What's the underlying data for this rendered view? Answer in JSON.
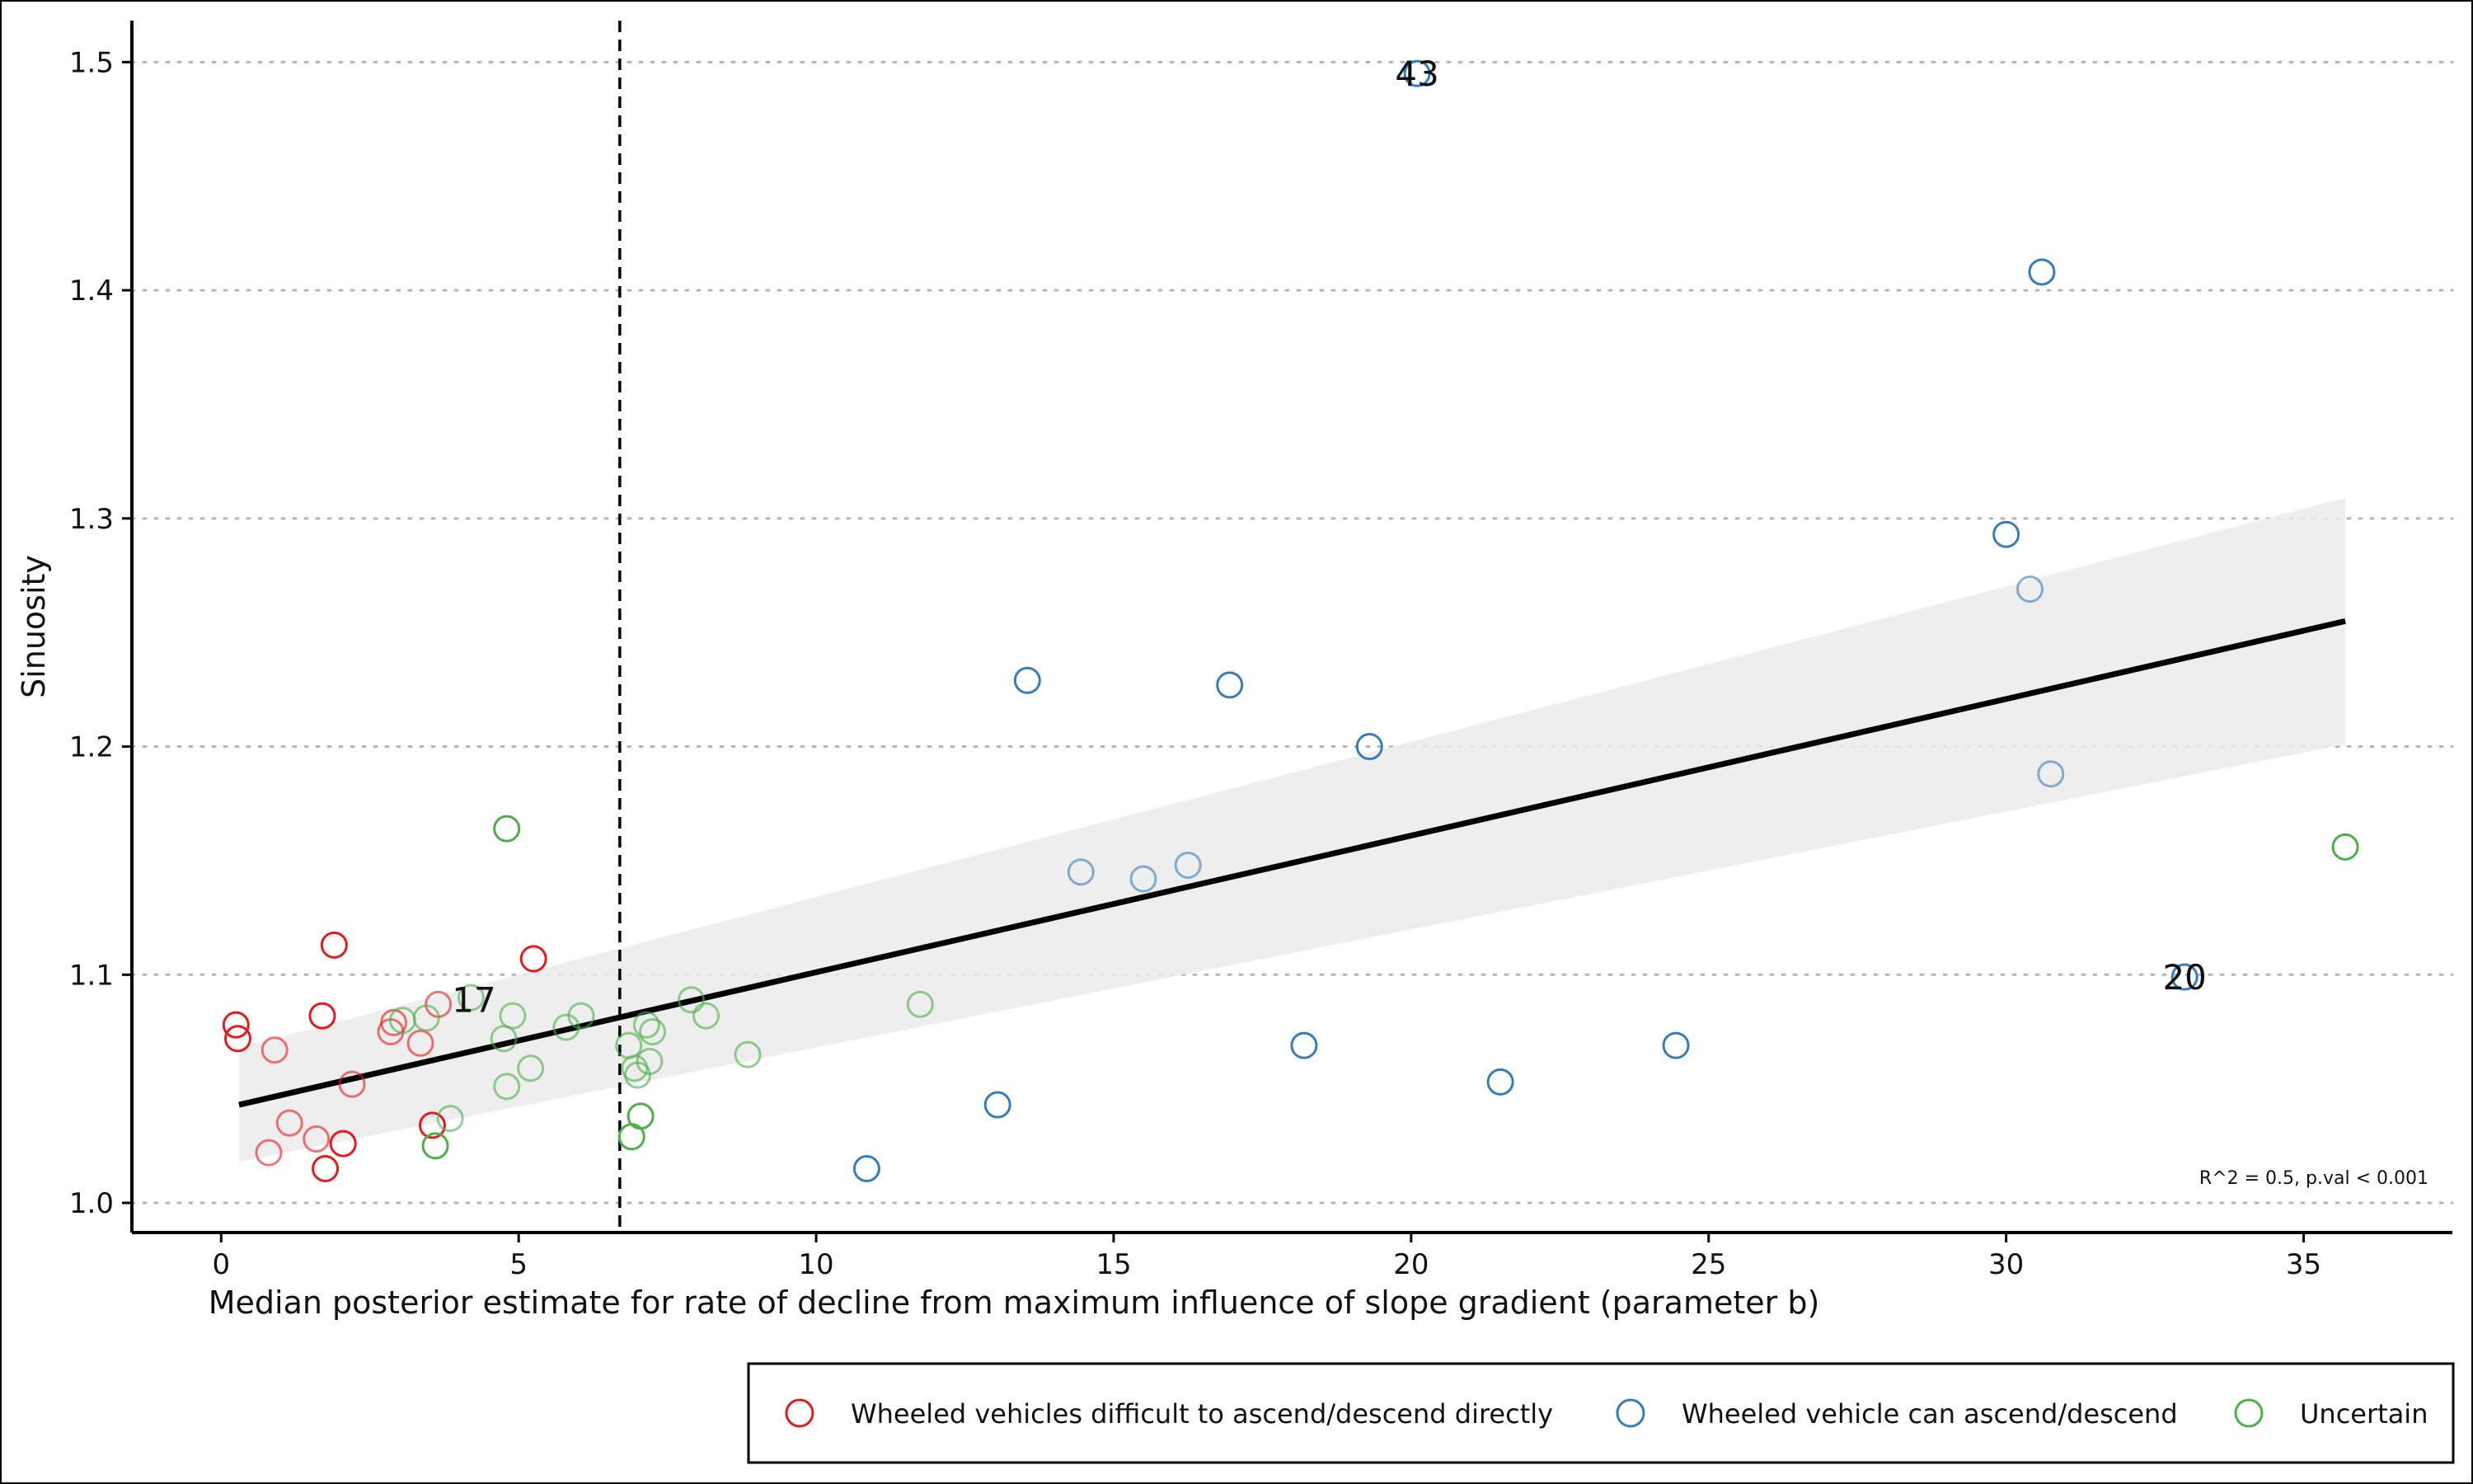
{
  "chart_data": {
    "type": "scatter",
    "xlabel": "Median posterior estimate for rate of decline from maximum influence of slope gradient (parameter b)",
    "ylabel": "Sinuosity",
    "xlim": [
      -1.5,
      37.5
    ],
    "ylim": [
      0.987,
      1.52
    ],
    "x_ticks": [
      0,
      5,
      10,
      15,
      20,
      25,
      30,
      35
    ],
    "y_ticks": [
      1.0,
      1.1,
      1.2,
      1.3,
      1.4,
      1.5
    ],
    "y_tick_labels": [
      "1.0",
      "1.1",
      "1.2",
      "1.3",
      "1.4",
      "1.5"
    ],
    "grid": "horizontal-dotted",
    "vline_x": 6.7,
    "annotation": "R^2 = 0.5, p.val < 0.001",
    "fit": {
      "x": [
        0.3,
        35.7
      ],
      "y": [
        1.043,
        1.255
      ],
      "ci_lower": [
        1.018,
        1.201
      ],
      "ci_upper": [
        1.068,
        1.309
      ]
    },
    "legend_position": "bottom-right",
    "series": [
      {
        "name": "Wheeled vehicles difficult to ascend/descend directly",
        "color": "#e41a1c",
        "points": [
          [
            0.25,
            1.078
          ],
          [
            0.28,
            1.072
          ],
          [
            0.9,
            1.067
          ],
          [
            1.15,
            1.035
          ],
          [
            0.8,
            1.022
          ],
          [
            1.6,
            1.028
          ],
          [
            1.7,
            1.082
          ],
          [
            1.75,
            1.015
          ],
          [
            1.9,
            1.113
          ],
          [
            2.05,
            1.026
          ],
          [
            2.2,
            1.052
          ],
          [
            2.85,
            1.075
          ],
          [
            2.9,
            1.079
          ],
          [
            3.35,
            1.07
          ],
          [
            3.55,
            1.034
          ],
          [
            3.65,
            1.087
          ],
          [
            5.25,
            1.107
          ]
        ]
      },
      {
        "name": "Wheeled vehicle can ascend/descend",
        "color": "#377eb8",
        "points": [
          [
            10.85,
            1.015
          ],
          [
            13.05,
            1.043
          ],
          [
            13.55,
            1.229
          ],
          [
            14.45,
            1.145
          ],
          [
            15.5,
            1.142
          ],
          [
            16.25,
            1.148
          ],
          [
            16.95,
            1.227
          ],
          [
            18.2,
            1.069
          ],
          [
            19.3,
            1.2
          ],
          [
            20.1,
            1.495
          ],
          [
            21.5,
            1.053
          ],
          [
            24.45,
            1.069
          ],
          [
            30.0,
            1.293
          ],
          [
            30.4,
            1.269
          ],
          [
            30.6,
            1.408
          ],
          [
            30.75,
            1.188
          ],
          [
            33.0,
            1.099
          ]
        ]
      },
      {
        "name": "Uncertain",
        "color": "#4daf4a",
        "points": [
          [
            3.05,
            1.08
          ],
          [
            3.45,
            1.081
          ],
          [
            3.6,
            1.025
          ],
          [
            3.85,
            1.037
          ],
          [
            4.2,
            1.09
          ],
          [
            4.75,
            1.072
          ],
          [
            4.8,
            1.164
          ],
          [
            4.8,
            1.051
          ],
          [
            4.9,
            1.082
          ],
          [
            5.2,
            1.059
          ],
          [
            5.8,
            1.077
          ],
          [
            6.05,
            1.082
          ],
          [
            6.85,
            1.069
          ],
          [
            6.9,
            1.029
          ],
          [
            6.95,
            1.059
          ],
          [
            7.0,
            1.056
          ],
          [
            7.05,
            1.038
          ],
          [
            7.15,
            1.078
          ],
          [
            7.2,
            1.062
          ],
          [
            7.25,
            1.075
          ],
          [
            7.9,
            1.089
          ],
          [
            8.15,
            1.082
          ],
          [
            8.85,
            1.065
          ],
          [
            11.75,
            1.087
          ],
          [
            35.7,
            1.156
          ]
        ]
      }
    ],
    "point_labels": [
      {
        "text": "43",
        "x": 20.1,
        "y": 1.495
      },
      {
        "text": "17",
        "x": 4.25,
        "y": 1.089
      },
      {
        "text": "20",
        "x": 33.0,
        "y": 1.099
      }
    ]
  }
}
